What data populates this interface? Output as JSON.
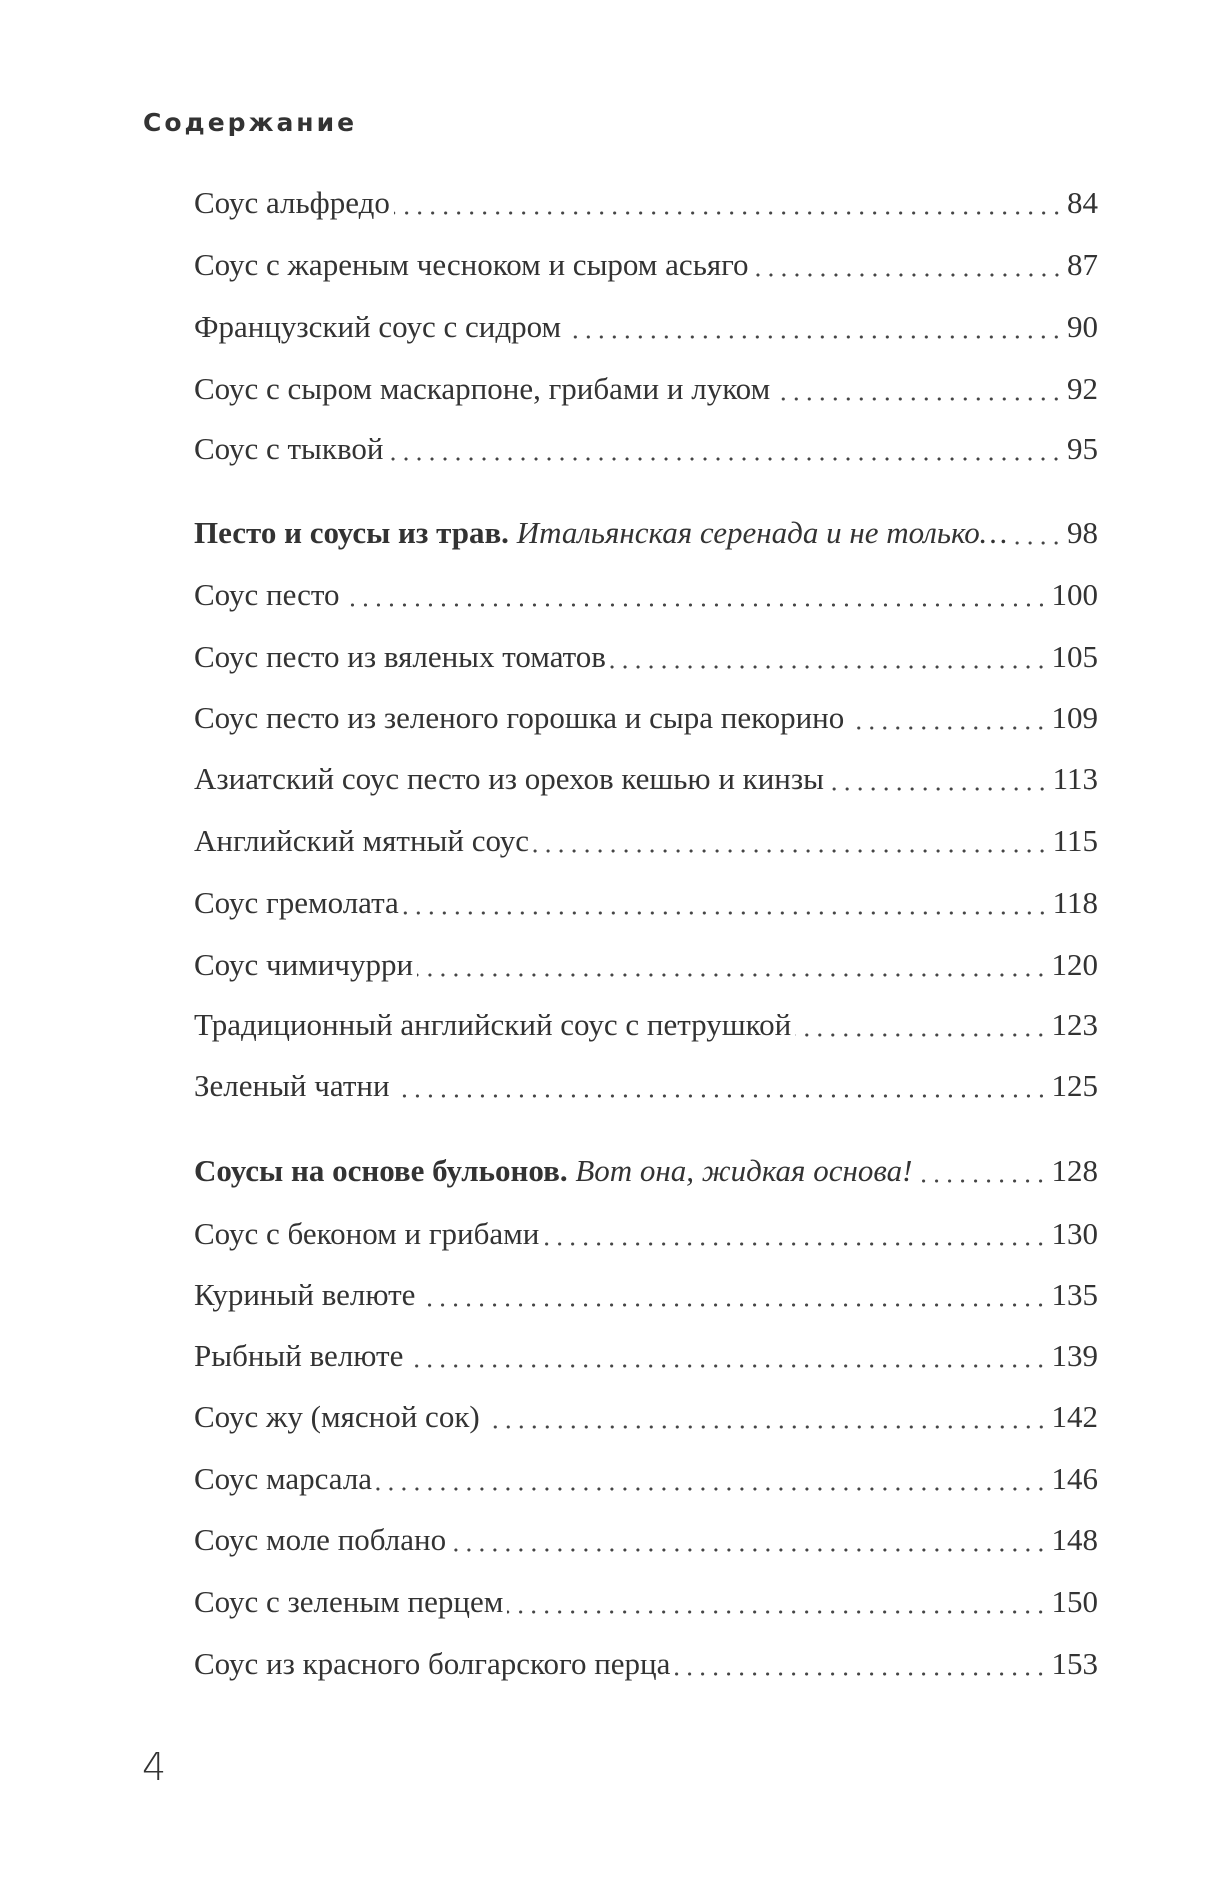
{
  "heading": "Содержание",
  "entries": [
    {
      "title": "Соус альфредо",
      "page": "84"
    },
    {
      "title": "Соус с жареным чесноком и сыром асьяго",
      "page": "87"
    },
    {
      "title": "Французский соус с сидром",
      "page": "90"
    },
    {
      "title": "Соус с сыром маскарпоне, грибами и луком",
      "page": "92"
    },
    {
      "title": "Соус с тыквой",
      "page": "95"
    },
    {
      "section": "Песто и соусы из трав.",
      "subtitle": "Итальянская серенада и не только…",
      "page": "98"
    },
    {
      "title": "Соус песто",
      "page": "100"
    },
    {
      "title": "Соус песто из вяленых томатов",
      "page": "105"
    },
    {
      "title": "Соус песто из зеленого горошка и сыра пекорино",
      "page": "109"
    },
    {
      "title": "Азиатский соус песто из орехов кешью и кинзы",
      "page": "113"
    },
    {
      "title": "Английский мятный соус",
      "page": "115"
    },
    {
      "title": "Соус гремолата",
      "page": "118"
    },
    {
      "title": "Соус чимичурри",
      "page": "120"
    },
    {
      "title": "Традиционный английский соус с петрушкой",
      "page": "123"
    },
    {
      "title": "Зеленый чатни",
      "page": "125"
    },
    {
      "section": "Соусы на основе бульонов.",
      "subtitle": "Вот она, жидкая основа!",
      "page": "128"
    },
    {
      "title": "Соус с беконом и грибами",
      "page": "130"
    },
    {
      "title": "Куриный велюте",
      "page": "135"
    },
    {
      "title": "Рыбный велюте",
      "page": "139"
    },
    {
      "title": "Соус жу (мясной сок)",
      "page": "142"
    },
    {
      "title": "Соус марсала",
      "page": "146"
    },
    {
      "title": "Соус моле поблано",
      "page": "148"
    },
    {
      "title": "Соус с зеленым перцем",
      "page": "150"
    },
    {
      "title": "Соус из красного болгарского перца",
      "page": "153"
    }
  ],
  "page_number": "4"
}
